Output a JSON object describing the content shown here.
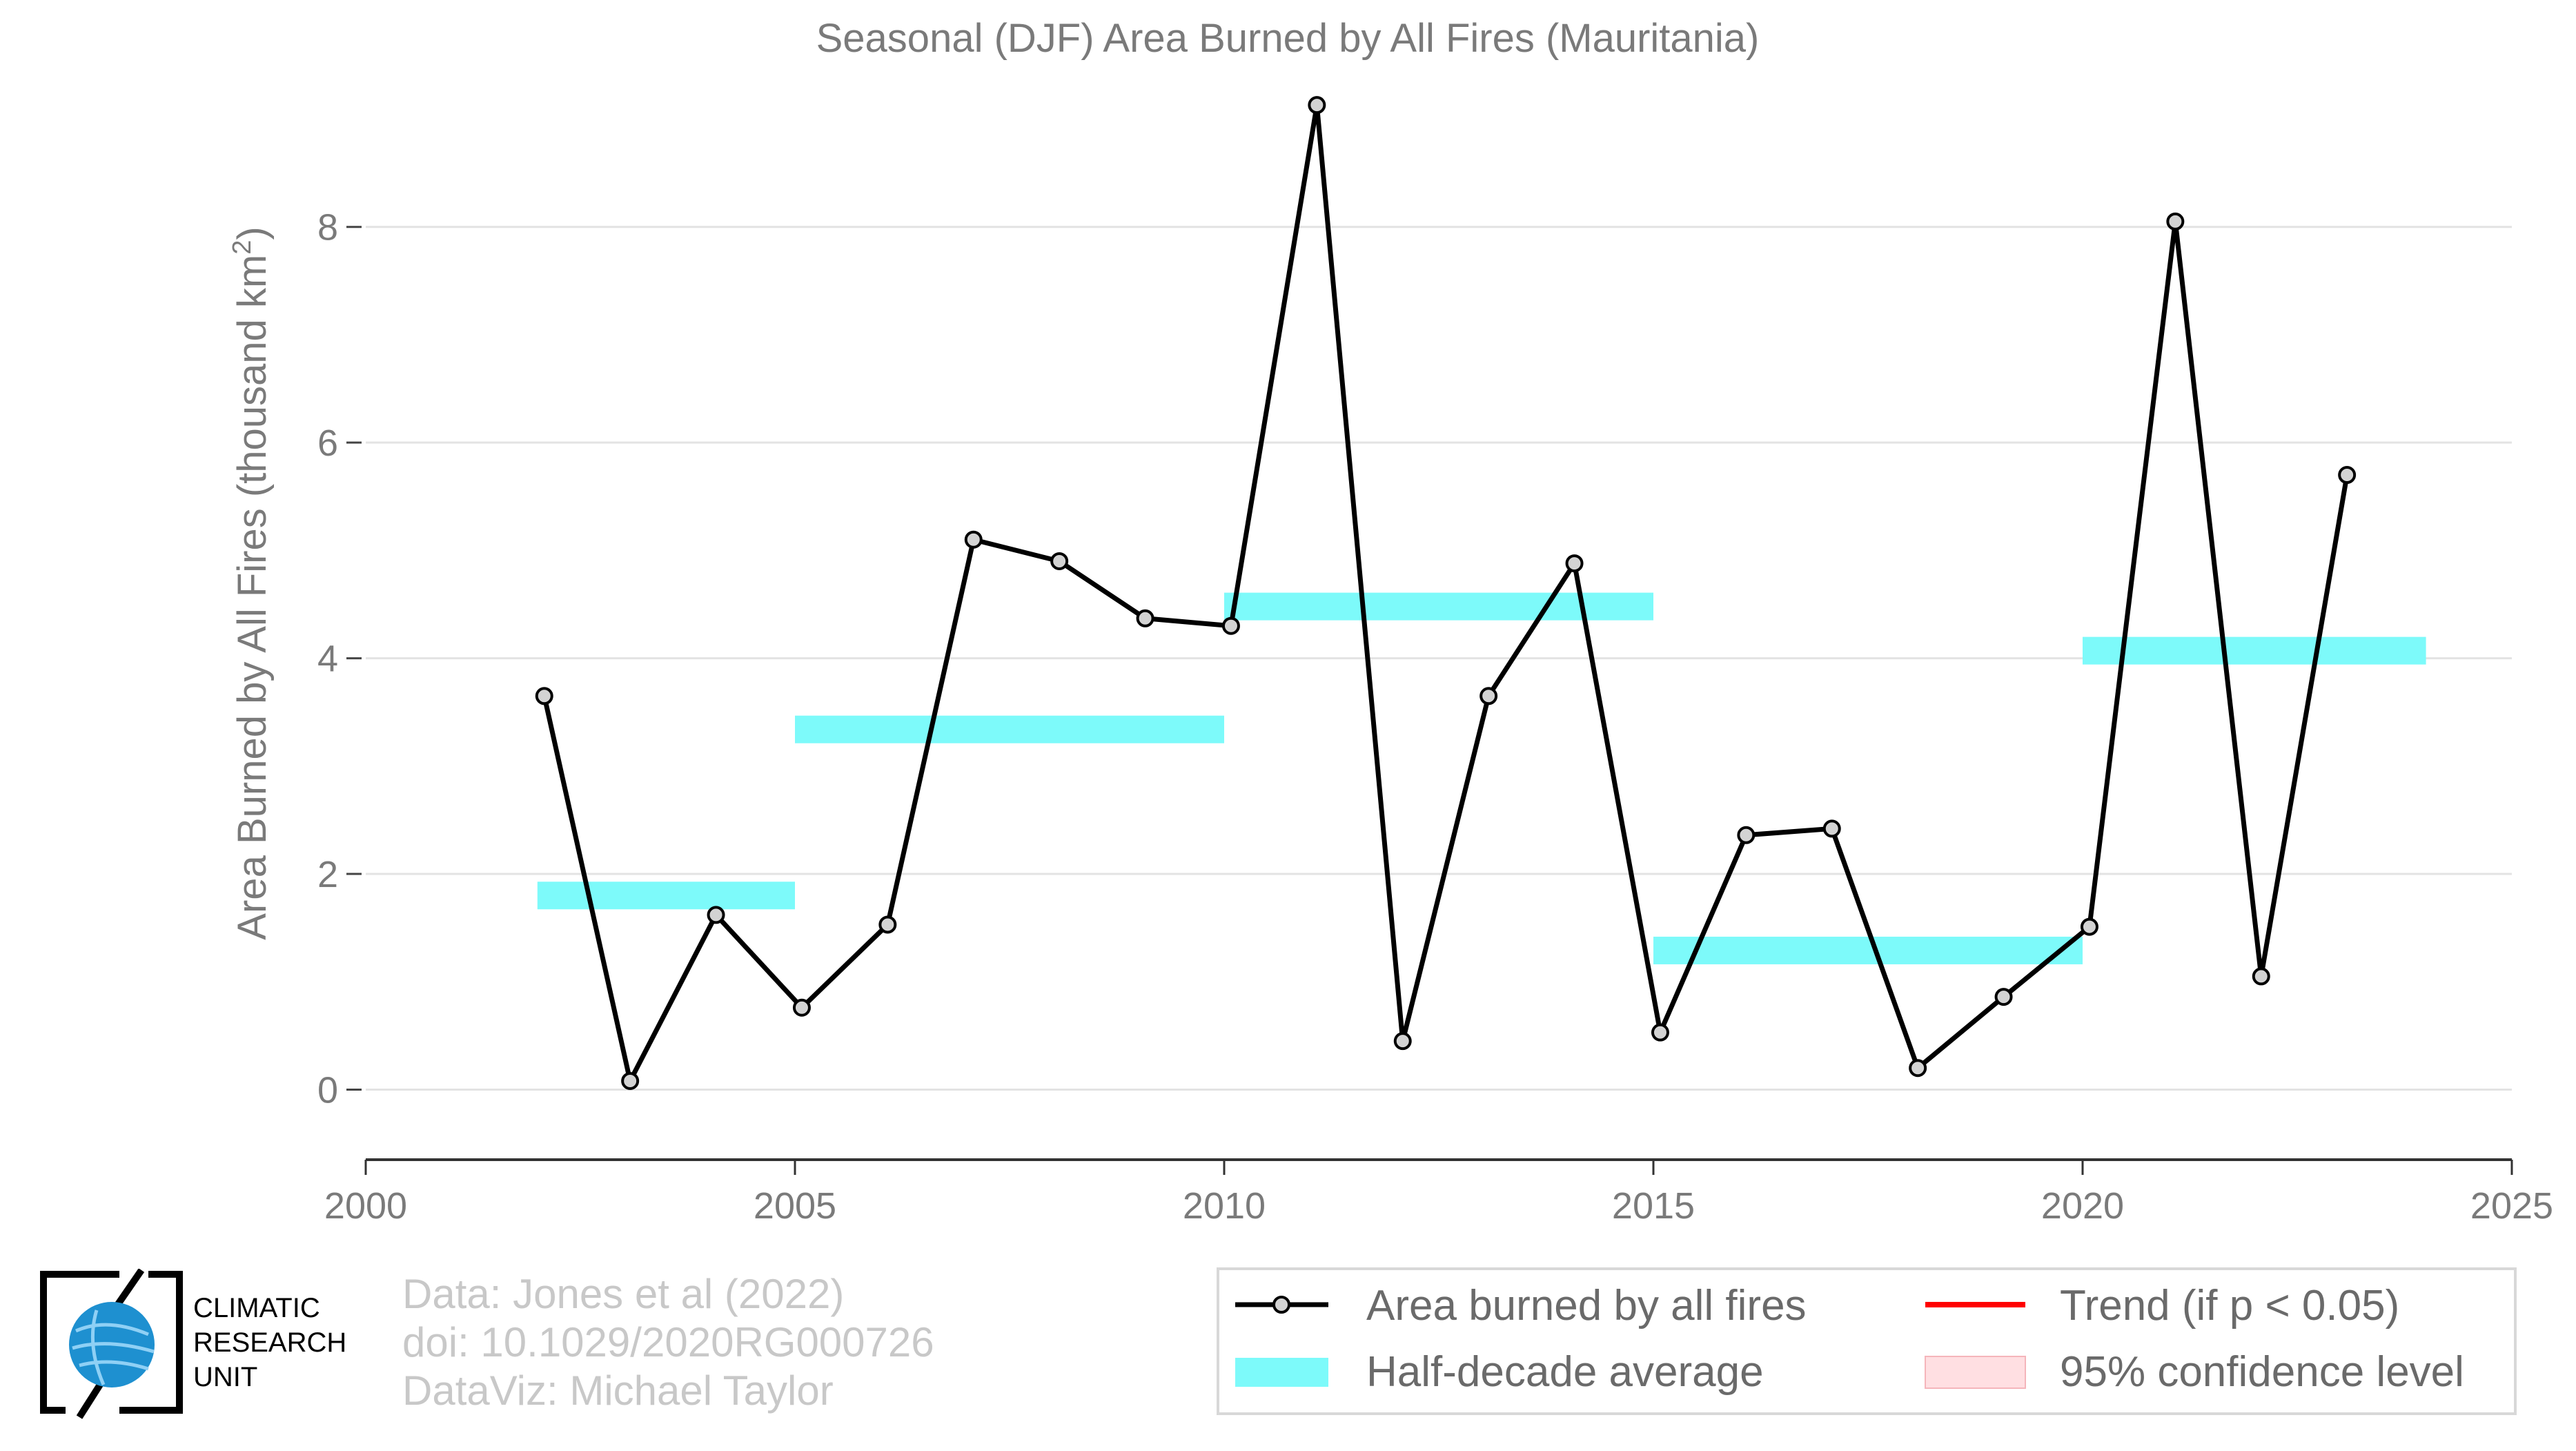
{
  "chart_data": {
    "type": "line",
    "title": "Seasonal (DJF) Area Burned by All Fires (Mauritania)",
    "ylabel": "Area Burned by All Fires (thousand km",
    "ylabel_sup": "2",
    "ylabel_end": ")",
    "xlabel": "",
    "xlim": [
      2000,
      2025
    ],
    "ylim": [
      -0.65,
      9.4
    ],
    "x_ticks": [
      "2000",
      "2005",
      "2010",
      "2015",
      "2020",
      "2025"
    ],
    "y_ticks": [
      "0",
      "2",
      "4",
      "6",
      "8"
    ],
    "grid": "horizontal",
    "series": [
      {
        "name": "Area burned by all fires",
        "color": "#000000",
        "x": [
          2002,
          2003,
          2004,
          2005,
          2006,
          2007,
          2008,
          2009,
          2010,
          2011,
          2012,
          2013,
          2014,
          2015,
          2016,
          2017,
          2018,
          2019,
          2020,
          2021,
          2022,
          2023
        ],
        "values": [
          3.65,
          0.08,
          1.62,
          0.76,
          1.53,
          5.1,
          4.9,
          4.37,
          4.3,
          9.13,
          0.45,
          3.65,
          4.88,
          0.53,
          2.36,
          2.42,
          0.2,
          0.86,
          1.51,
          8.05,
          1.05,
          5.7
        ]
      }
    ],
    "half_decade_average": {
      "name": "Half-decade average",
      "color": "#7dfafa",
      "segments": [
        {
          "start": 2002,
          "end": 2005,
          "value": 1.8
        },
        {
          "start": 2005,
          "end": 2010,
          "value": 3.34
        },
        {
          "start": 2010,
          "end": 2015,
          "value": 4.48
        },
        {
          "start": 2015,
          "end": 2020,
          "value": 1.29
        },
        {
          "start": 2020,
          "end": 2024,
          "value": 4.07
        }
      ]
    },
    "legend": {
      "placement": "bottom-right",
      "entries": [
        {
          "label": "Area burned by all fires",
          "color": "#000000"
        },
        {
          "label": "Trend (if p < 0.05)",
          "color": "#ff0000"
        },
        {
          "label": "Half-decade average",
          "color": "#7dfafa"
        },
        {
          "label": "95% confidence level",
          "color": "#ffd9dc"
        }
      ]
    }
  },
  "credits": {
    "line1": "Data: Jones et al (2022)",
    "line2": "doi: 10.1029/2020RG000726",
    "line3": "DataViz: Michael Taylor"
  },
  "logo": {
    "line1": "CLIMATIC",
    "line2": "RESEARCH",
    "line3": "UNIT",
    "globe_color": "#1e90d0"
  }
}
